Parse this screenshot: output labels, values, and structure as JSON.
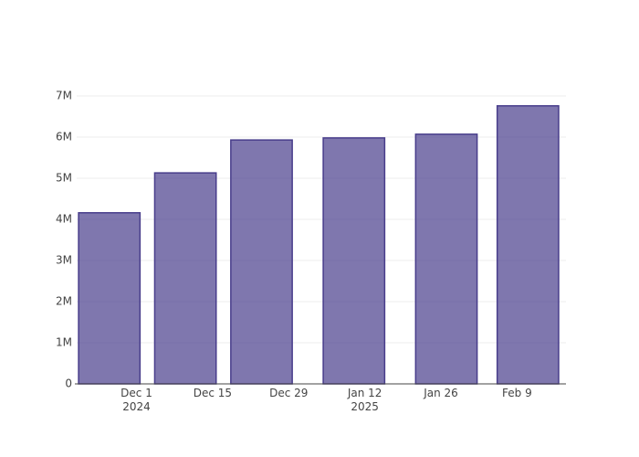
{
  "chart_data": {
    "type": "bar",
    "x": [
      "2024-11-26",
      "2024-12-10",
      "2024-12-24",
      "2025-01-10",
      "2025-01-27",
      "2025-02-11"
    ],
    "values": [
      4160000,
      5130000,
      5930000,
      5980000,
      6070000,
      6760000
    ],
    "color": "#483d8b",
    "xlim": [
      "2024-11-20",
      "2025-02-18"
    ],
    "xticks": [
      {
        "value": "2024-12-01",
        "label": "Dec 1\n2024"
      },
      {
        "value": "2024-12-15",
        "label": "Dec 15"
      },
      {
        "value": "2024-12-29",
        "label": "Dec 29"
      },
      {
        "value": "2025-01-12",
        "label": "Jan 12\n2025"
      },
      {
        "value": "2025-01-26",
        "label": "Jan 26"
      },
      {
        "value": "2025-02-09",
        "label": "Feb 9"
      }
    ],
    "ylim": [
      0,
      7000000
    ],
    "yticks": [
      0,
      {
        "value": 1000000,
        "label": "1M"
      },
      {
        "value": 2000000,
        "label": "2M"
      },
      {
        "value": 3000000,
        "label": "3M"
      },
      {
        "value": 4000000,
        "label": "4M"
      },
      {
        "value": 5000000,
        "label": "5M"
      },
      {
        "value": 6000000,
        "label": "6M"
      },
      {
        "value": 7000000,
        "label": "7M"
      }
    ],
    "grid": true
  }
}
